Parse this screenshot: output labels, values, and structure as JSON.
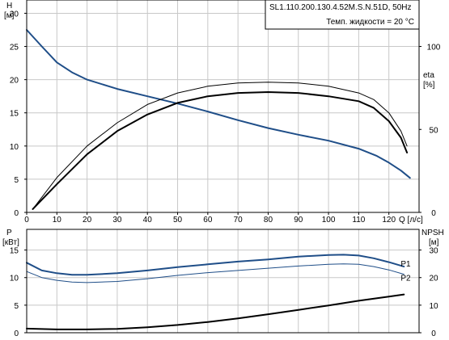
{
  "header": {
    "model": "SL1.110.200.130.4.52M.S.N.51D, 50Hz",
    "liquid_temp": "Темп. жидкости = 20 °C"
  },
  "chart_data": [
    {
      "type": "line",
      "panel": "upper",
      "grid": true,
      "x_axis": {
        "unit_label": "Q [л/с]",
        "range": [
          0,
          130
        ],
        "ticks": [
          0,
          10,
          20,
          30,
          40,
          50,
          60,
          70,
          80,
          90,
          100,
          110,
          120
        ]
      },
      "y_left": {
        "label": "H",
        "unit": "[м]",
        "range": [
          0,
          32
        ],
        "ticks": [
          0,
          5,
          10,
          15,
          20,
          25,
          30
        ]
      },
      "y_right": {
        "label": "eta",
        "unit": "[%]",
        "range": [
          0,
          128
        ],
        "ticks": [
          0,
          50,
          100
        ]
      },
      "series": [
        {
          "color": "#1f4e88",
          "axis": "left",
          "width": 2,
          "x": [
            0,
            5,
            10,
            15,
            20,
            30,
            40,
            50,
            60,
            70,
            80,
            90,
            100,
            110,
            116,
            120,
            124,
            127
          ],
          "y": [
            27.5,
            25.0,
            22.6,
            21.1,
            20.0,
            18.6,
            17.5,
            16.4,
            15.2,
            13.9,
            12.7,
            11.7,
            10.8,
            9.6,
            8.5,
            7.5,
            6.3,
            5.2
          ]
        },
        {
          "color": "#000000",
          "axis": "right",
          "width": 1,
          "x": [
            2,
            10,
            20,
            30,
            40,
            50,
            60,
            70,
            80,
            90,
            100,
            110,
            115,
            120,
            124,
            126
          ],
          "y": [
            2,
            21,
            40,
            54,
            65,
            72,
            76,
            78,
            78.5,
            78,
            76,
            72,
            68,
            60,
            49,
            40
          ]
        },
        {
          "color": "#000000",
          "axis": "right",
          "width": 2,
          "x": [
            2,
            10,
            20,
            30,
            40,
            50,
            60,
            70,
            80,
            90,
            100,
            110,
            115,
            120,
            124,
            126
          ],
          "y": [
            2,
            17,
            35,
            49,
            59,
            66,
            70,
            72,
            72.5,
            72,
            70,
            67,
            63,
            55,
            45,
            36
          ]
        }
      ]
    },
    {
      "type": "line",
      "panel": "lower",
      "grid": true,
      "x_axis": {
        "range": [
          0,
          130
        ]
      },
      "y_left": {
        "label": "P",
        "unit": "[кВт]",
        "range": [
          0,
          18.75
        ],
        "ticks": [
          0,
          5,
          10,
          15
        ]
      },
      "y_right": {
        "label": "NPSH",
        "unit": "[м]",
        "range": [
          0,
          37.5
        ],
        "ticks": [
          0,
          10,
          20,
          30
        ]
      },
      "series": [
        {
          "name": "P1",
          "color": "#1f4e88",
          "axis": "left",
          "width": 2,
          "x": [
            0,
            5,
            10,
            15,
            20,
            30,
            40,
            50,
            60,
            70,
            80,
            90,
            100,
            105,
            110,
            115,
            120,
            125
          ],
          "y": [
            12.7,
            11.3,
            10.8,
            10.5,
            10.5,
            10.8,
            11.3,
            11.9,
            12.4,
            12.9,
            13.3,
            13.8,
            14.1,
            14.15,
            14.0,
            13.5,
            12.8,
            12.0
          ]
        },
        {
          "name": "P2",
          "color": "#1f4e88",
          "axis": "left",
          "width": 1,
          "x": [
            0,
            5,
            10,
            15,
            20,
            30,
            40,
            50,
            60,
            70,
            80,
            90,
            100,
            105,
            110,
            115,
            120,
            125
          ],
          "y": [
            11.1,
            10.0,
            9.5,
            9.2,
            9.1,
            9.3,
            9.8,
            10.4,
            10.9,
            11.3,
            11.7,
            12.1,
            12.4,
            12.5,
            12.4,
            12.0,
            11.4,
            10.6
          ]
        },
        {
          "color": "#000000",
          "axis": "right",
          "width": 2,
          "x": [
            0,
            10,
            20,
            30,
            40,
            50,
            60,
            70,
            80,
            90,
            100,
            110,
            120,
            125
          ],
          "y": [
            1.5,
            1.2,
            1.2,
            1.4,
            2.0,
            2.8,
            3.9,
            5.2,
            6.7,
            8.3,
            9.9,
            11.6,
            13.1,
            13.9
          ]
        }
      ]
    }
  ]
}
